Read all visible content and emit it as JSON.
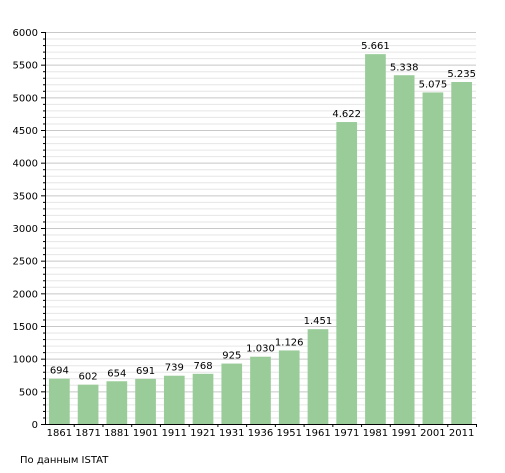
{
  "chart_data": {
    "type": "bar",
    "categories": [
      "1861",
      "1871",
      "1881",
      "1901",
      "1911",
      "1921",
      "1931",
      "1936",
      "1951",
      "1961",
      "1971",
      "1981",
      "1991",
      "2001",
      "2011"
    ],
    "values": [
      694,
      602,
      654,
      691,
      739,
      768,
      925,
      1030,
      1126,
      1451,
      4622,
      5661,
      5338,
      5075,
      5235
    ],
    "data_labels": [
      "694",
      "602",
      "654",
      "691",
      "739",
      "768",
      "925",
      "1.030",
      "1.126",
      "1.451",
      "4.622",
      "5.661",
      "5.338",
      "5.075",
      "5.235"
    ],
    "ylim": [
      0,
      6000
    ],
    "y_ticks": [
      "0",
      "500",
      "1000",
      "1500",
      "2000",
      "2500",
      "3000",
      "3500",
      "4000",
      "4500",
      "5000",
      "5500",
      "6000"
    ],
    "grid": true,
    "bar_color": "#99cc99",
    "title": "",
    "xlabel": "",
    "ylabel": ""
  },
  "source_note": "По данным  ISTAT"
}
